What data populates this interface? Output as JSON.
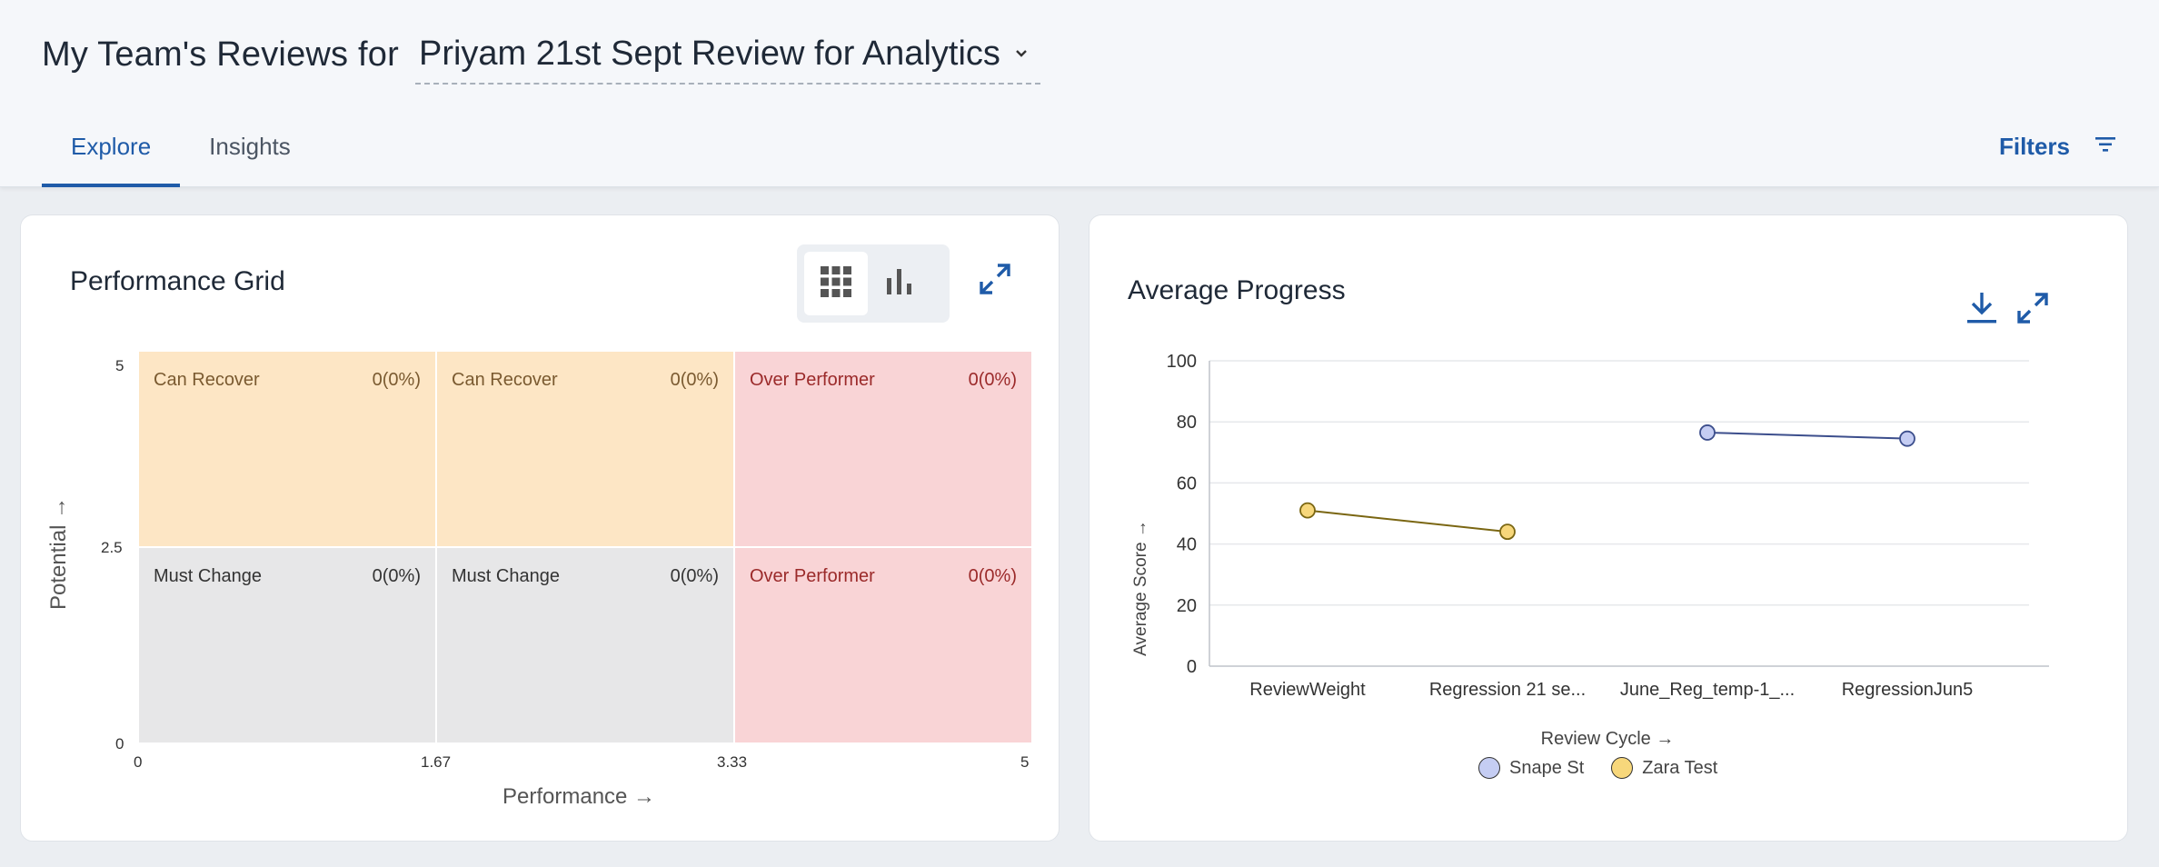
{
  "header": {
    "title_prefix": "My Team's Reviews for",
    "selected_review": "Priyam 21st Sept Review for Analytics",
    "tabs": [
      {
        "label": "Explore",
        "active": true
      },
      {
        "label": "Insights",
        "active": false
      }
    ],
    "filters_label": "Filters"
  },
  "colors": {
    "accent": "#1f5ba8",
    "can_recover": "#fde6c5",
    "must_change": "#e7e7e8",
    "over_performer": "#f9d4d6",
    "snape": "#c5cdf3",
    "zara": "#f7d77b",
    "snape_line": "#3c4e8c",
    "zara_line": "#7a6612"
  },
  "performance_grid": {
    "title": "Performance Grid",
    "view_icons": [
      "grid-icon",
      "bar-chart-icon"
    ],
    "cells": [
      {
        "label": "Can Recover",
        "value": "0(0%)",
        "tone": "orange"
      },
      {
        "label": "Can Recover",
        "value": "0(0%)",
        "tone": "orange"
      },
      {
        "label": "Over Performer",
        "value": "0(0%)",
        "tone": "red"
      },
      {
        "label": "Must Change",
        "value": "0(0%)",
        "tone": "gray"
      },
      {
        "label": "Must Change",
        "value": "0(0%)",
        "tone": "gray"
      },
      {
        "label": "Over Performer",
        "value": "0(0%)",
        "tone": "red"
      }
    ],
    "x_ticks": [
      "0",
      "1.67",
      "3.33",
      "5"
    ],
    "y_ticks": [
      "5",
      "2.5",
      "0"
    ],
    "x_label": "Performance →",
    "y_label": "Potential →"
  },
  "average_progress": {
    "title": "Average Progress",
    "chart_data": {
      "type": "line",
      "categories": [
        "ReviewWeight",
        "Regression 21 se...",
        "June_Reg_temp-1_...",
        "RegressionJun5"
      ],
      "xlabel": "Review Cycle →",
      "ylabel": "Average Score →",
      "ylim": [
        0,
        100
      ],
      "y_ticks": [
        0,
        20,
        40,
        60,
        80,
        100
      ],
      "grid": true,
      "legend": "bottom",
      "series": [
        {
          "name": "Snape St",
          "values": [
            null,
            null,
            76.5,
            74.5
          ]
        },
        {
          "name": "Zara Test",
          "values": [
            51,
            44,
            null,
            null
          ]
        }
      ]
    }
  }
}
